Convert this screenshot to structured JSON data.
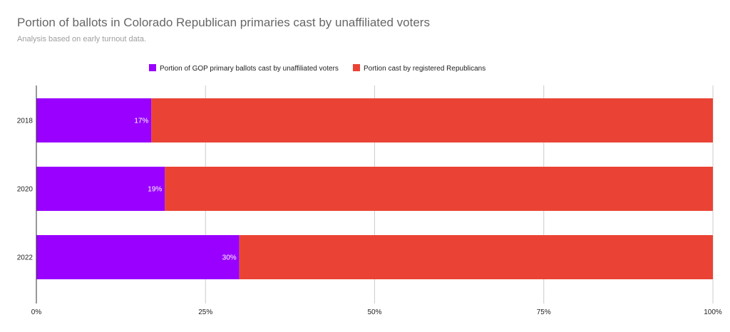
{
  "chart_data": {
    "type": "bar",
    "orientation": "horizontal",
    "stacked": "percent",
    "title": "Portion of ballots in Colorado Republican primaries cast by unaffiliated voters",
    "subtitle": "Analysis based on early turnout data.",
    "categories": [
      "2018",
      "2020",
      "2022"
    ],
    "series": [
      {
        "name": "Portion of GOP primary ballots cast by unaffiliated voters",
        "color": "#9900ff",
        "values": [
          17,
          19,
          30
        ],
        "data_labels": [
          "17%",
          "19%",
          "30%"
        ]
      },
      {
        "name": "Portion cast by registered Republicans",
        "color": "#ea4335",
        "values": [
          83,
          81,
          70
        ]
      }
    ],
    "xlim": [
      0,
      100
    ],
    "x_ticks": [
      "0%",
      "25%",
      "50%",
      "75%",
      "100%"
    ],
    "grid": true,
    "legend_position": "top"
  }
}
